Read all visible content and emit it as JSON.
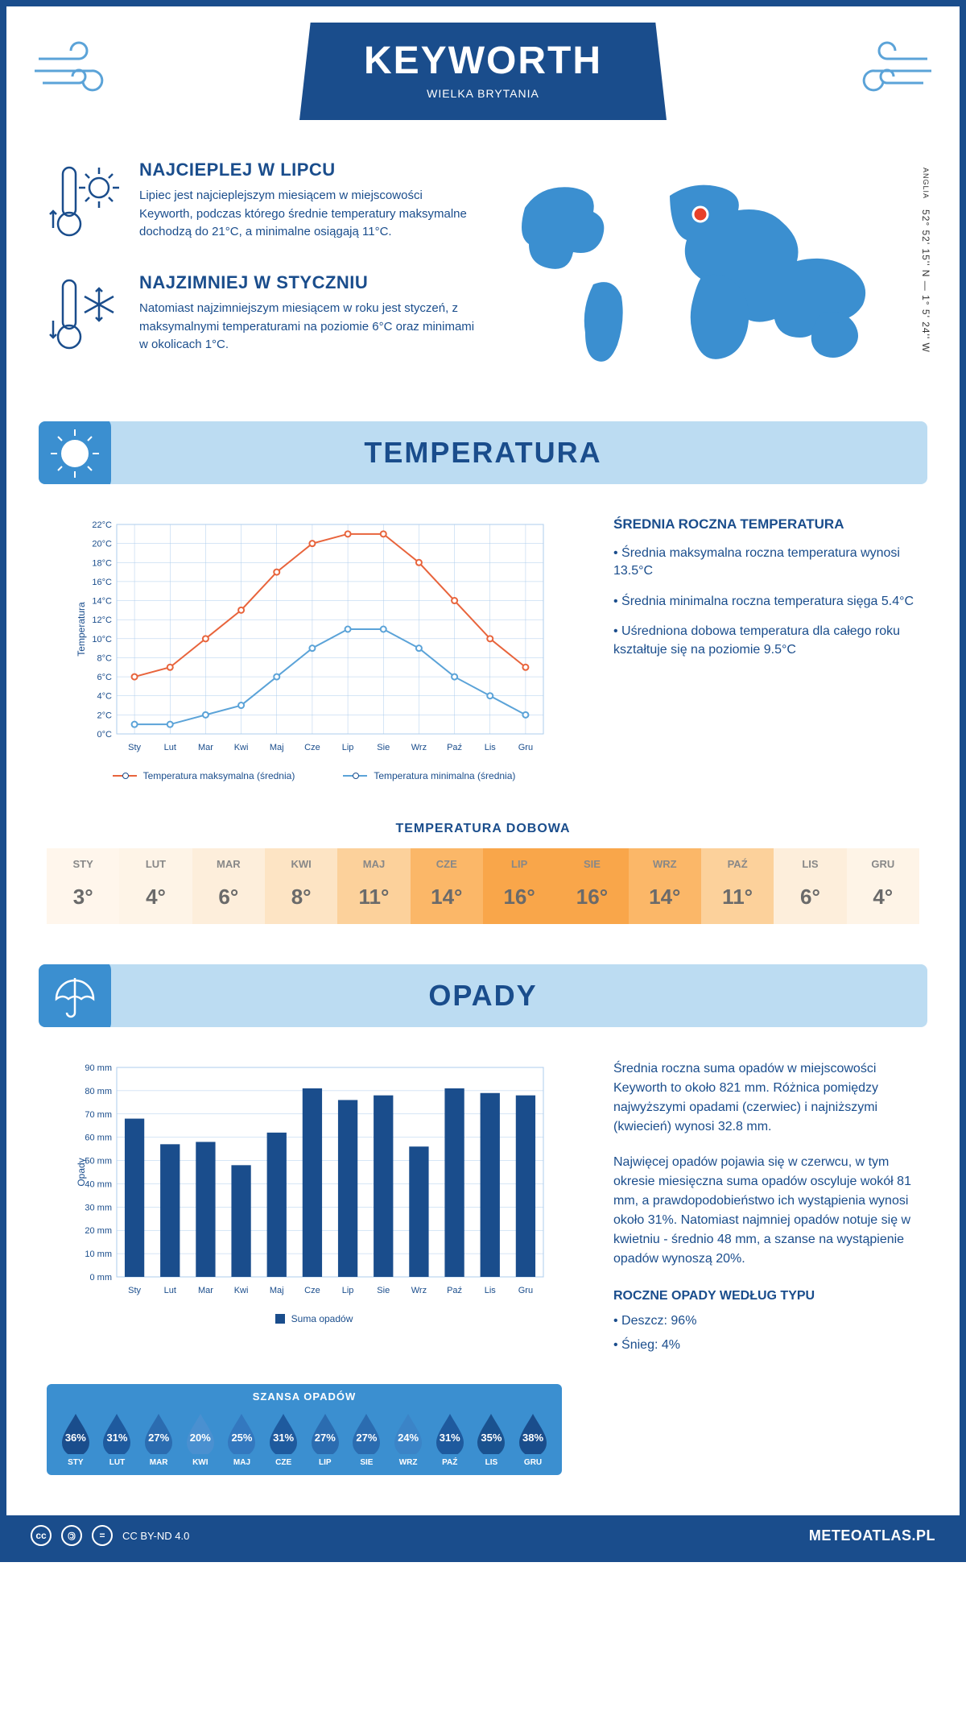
{
  "header": {
    "title": "KEYWORTH",
    "subtitle": "WIELKA BRYTANIA"
  },
  "coords": {
    "lat": "52° 52' 15'' N",
    "lon": "1° 5' 24'' W",
    "region": "ANGLIA"
  },
  "colors": {
    "primary": "#1a4d8c",
    "lightBlue": "#bcdcf2",
    "midBlue": "#3b8fd0",
    "skyBlue": "#5ba3d8",
    "mapBlue": "#3b8fd0",
    "orange": "#e8643c",
    "marker": "#e8412a"
  },
  "intro": {
    "hot": {
      "title": "NAJCIEPLEJ W LIPCU",
      "text": "Lipiec jest najcieplejszym miesiącem w miejscowości Keyworth, podczas którego średnie temperatury maksymalne dochodzą do 21°C, a minimalne osiągają 11°C."
    },
    "cold": {
      "title": "NAJZIMNIEJ W STYCZNIU",
      "text": "Natomiast najzimniejszym miesiącem w roku jest styczeń, z maksymalnymi temperaturami na poziomie 6°C oraz minimami w okolicach 1°C."
    }
  },
  "months": [
    "Sty",
    "Lut",
    "Mar",
    "Kwi",
    "Maj",
    "Cze",
    "Lip",
    "Sie",
    "Wrz",
    "Paź",
    "Lis",
    "Gru"
  ],
  "monthsUpper": [
    "STY",
    "LUT",
    "MAR",
    "KWI",
    "MAJ",
    "CZE",
    "LIP",
    "SIE",
    "WRZ",
    "PAŹ",
    "LIS",
    "GRU"
  ],
  "temperature": {
    "sectionTitle": "TEMPERATURA",
    "sideTitle": "ŚREDNIA ROCZNA TEMPERATURA",
    "sideBullets": [
      "• Średnia maksymalna roczna temperatura wynosi 13.5°C",
      "• Średnia minimalna roczna temperatura sięga 5.4°C",
      "• Uśredniona dobowa temperatura dla całego roku kształtuje się na poziomie 9.5°C"
    ],
    "chart": {
      "ylabel": "Temperatura",
      "ylim": [
        0,
        22
      ],
      "ytick_step": 2,
      "max": [
        6,
        7,
        10,
        13,
        17,
        20,
        21,
        21,
        18,
        14,
        10,
        7
      ],
      "min": [
        1,
        1,
        2,
        3,
        6,
        9,
        11,
        11,
        9,
        6,
        4,
        2
      ],
      "maxColor": "#e8643c",
      "minColor": "#5ba3d8",
      "legendMax": "Temperatura maksymalna (średnia)",
      "legendMin": "Temperatura minimalna (średnia)",
      "grid_color": "#aeccec"
    },
    "dailyTitle": "TEMPERATURA DOBOWA",
    "daily": [
      {
        "m": "STY",
        "v": "3°",
        "c": "#fff6ec"
      },
      {
        "m": "LUT",
        "v": "4°",
        "c": "#fef4e7"
      },
      {
        "m": "MAR",
        "v": "6°",
        "c": "#fdeedb"
      },
      {
        "m": "KWI",
        "v": "8°",
        "c": "#fde4c4"
      },
      {
        "m": "MAJ",
        "v": "11°",
        "c": "#fcd19b"
      },
      {
        "m": "CZE",
        "v": "14°",
        "c": "#fbb768"
      },
      {
        "m": "LIP",
        "v": "16°",
        "c": "#f9a64a"
      },
      {
        "m": "SIE",
        "v": "16°",
        "c": "#f9a64a"
      },
      {
        "m": "WRZ",
        "v": "14°",
        "c": "#fbb768"
      },
      {
        "m": "PAŹ",
        "v": "11°",
        "c": "#fcd19b"
      },
      {
        "m": "LIS",
        "v": "6°",
        "c": "#fdeedb"
      },
      {
        "m": "GRU",
        "v": "4°",
        "c": "#fef4e7"
      }
    ]
  },
  "precip": {
    "sectionTitle": "OPADY",
    "para1": "Średnia roczna suma opadów w miejscowości Keyworth to około 821 mm. Różnica pomiędzy najwyższymi opadami (czerwiec) i najniższymi (kwiecień) wynosi 32.8 mm.",
    "para2": "Najwięcej opadów pojawia się w czerwcu, w tym okresie miesięczna suma opadów oscyluje wokół 81 mm, a prawdopodobieństwo ich wystąpienia wynosi około 31%. Natomiast najmniej opadów notuje się w kwietniu - średnio 48 mm, a szanse na wystąpienie opadów wynoszą 20%.",
    "chart": {
      "ylabel": "Opady",
      "ylim": [
        0,
        90
      ],
      "ytick_step": 10,
      "values": [
        68,
        57,
        58,
        48,
        62,
        81,
        76,
        78,
        56,
        81,
        79,
        78
      ],
      "barColor": "#1a4d8c",
      "legend": "Suma opadów",
      "grid_color": "#aeccec"
    },
    "chanceTitle": "SZANSA OPADÓW",
    "chance": [
      {
        "m": "STY",
        "p": "36%",
        "c": "#1a4d8c"
      },
      {
        "m": "LUT",
        "p": "31%",
        "c": "#1e5a9e"
      },
      {
        "m": "MAR",
        "p": "27%",
        "c": "#2b6cb0"
      },
      {
        "m": "KWI",
        "p": "20%",
        "c": "#4a90d0"
      },
      {
        "m": "MAJ",
        "p": "25%",
        "c": "#3378bf"
      },
      {
        "m": "CZE",
        "p": "31%",
        "c": "#1e5a9e"
      },
      {
        "m": "LIP",
        "p": "27%",
        "c": "#2b6cb0"
      },
      {
        "m": "SIE",
        "p": "27%",
        "c": "#2b6cb0"
      },
      {
        "m": "WRZ",
        "p": "24%",
        "c": "#3b84c7"
      },
      {
        "m": "PAŹ",
        "p": "31%",
        "c": "#1e5a9e"
      },
      {
        "m": "LIS",
        "p": "35%",
        "c": "#1a528f"
      },
      {
        "m": "GRU",
        "p": "38%",
        "c": "#1a4d8c"
      }
    ],
    "byTypeTitle": "ROCZNE OPADY WEDŁUG TYPU",
    "byType": [
      "• Deszcz: 96%",
      "• Śnieg: 4%"
    ]
  },
  "footer": {
    "license": "CC BY-ND 4.0",
    "site": "METEOATLAS.PL"
  }
}
